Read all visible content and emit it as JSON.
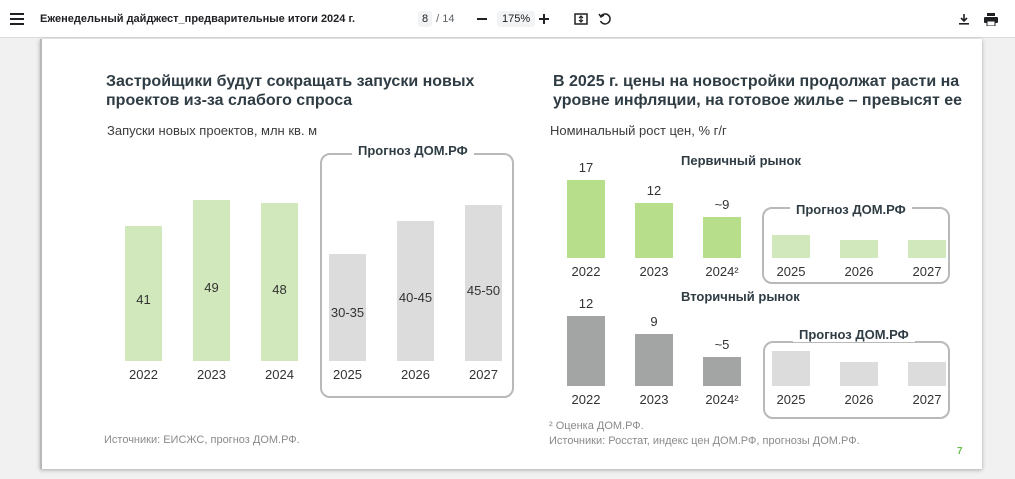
{
  "toolbar": {
    "doc_title": "Еженедельный дайджест_предварительные итоги 2024 г.",
    "page_current": "8",
    "page_total": "/ 14",
    "zoom": "175%",
    "icons": [
      "menu-icon",
      "zoom-out-icon",
      "zoom-in-icon",
      "fit-page-icon",
      "rotate-icon",
      "download-icon",
      "print-icon"
    ]
  },
  "colors": {
    "green": "#d1e8bc",
    "green_dark": "#b7de8b",
    "grey": "#dcdcdc",
    "grey_dark": "#a3a5a4",
    "accent": "#6abf4b"
  },
  "left": {
    "title_line1": "Застройщики будут сокращать запуски новых",
    "title_line2": "проектов из-за слабого спроса",
    "subtitle": "Запуски новых проектов, млн кв. м",
    "forecast_label": "Прогноз ДОМ.РФ",
    "source": "Источники: ЕИСЖС, прогноз ДОМ.РФ."
  },
  "right": {
    "title_line1": "В 2025 г. цены на новостройки продолжат расти на",
    "title_line2": "уровне инфляции, на готовое жилье – превысят ее",
    "subtitle": "Номинальный рост цен, % г/г",
    "primary_title": "Первичный рынок",
    "secondary_title": "Вторичный рынок",
    "forecast_label": "Прогноз ДОМ.РФ",
    "footnote": "² Оценка ДОМ.РФ.",
    "source": "Источники: Росстат, индекс цен ДОМ.РФ, прогнозы ДОМ.РФ."
  },
  "page_number": "7",
  "chart_data": [
    {
      "type": "bar",
      "title": "Запуски новых проектов, млн кв. м",
      "categories": [
        "2022",
        "2023",
        "2024",
        "2025",
        "2026",
        "2027"
      ],
      "values": [
        41,
        49,
        48,
        32.5,
        42.5,
        47.5
      ],
      "labels": [
        "41",
        "49",
        "48",
        "30-35",
        "40-45",
        "45-50"
      ],
      "forecast_from": "2025",
      "ylim": [
        0,
        52
      ]
    },
    {
      "type": "bar",
      "title": "Первичный рынок",
      "categories": [
        "2022",
        "2023",
        "2024²",
        "2025",
        "2026",
        "2027"
      ],
      "values": [
        17,
        12,
        9,
        5,
        4,
        4
      ],
      "labels": [
        "17",
        "12",
        "~9",
        "",
        "",
        ""
      ],
      "forecast_from": "2025",
      "ylim": [
        0,
        17
      ]
    },
    {
      "type": "bar",
      "title": "Вторичный рынок",
      "categories": [
        "2022",
        "2023",
        "2024²",
        "2025",
        "2026",
        "2027"
      ],
      "values": [
        12,
        9,
        5,
        6,
        4.2,
        4.2
      ],
      "labels": [
        "12",
        "9",
        "~5",
        "",
        "",
        ""
      ],
      "forecast_from": "2025",
      "ylim": [
        0,
        12
      ]
    }
  ]
}
